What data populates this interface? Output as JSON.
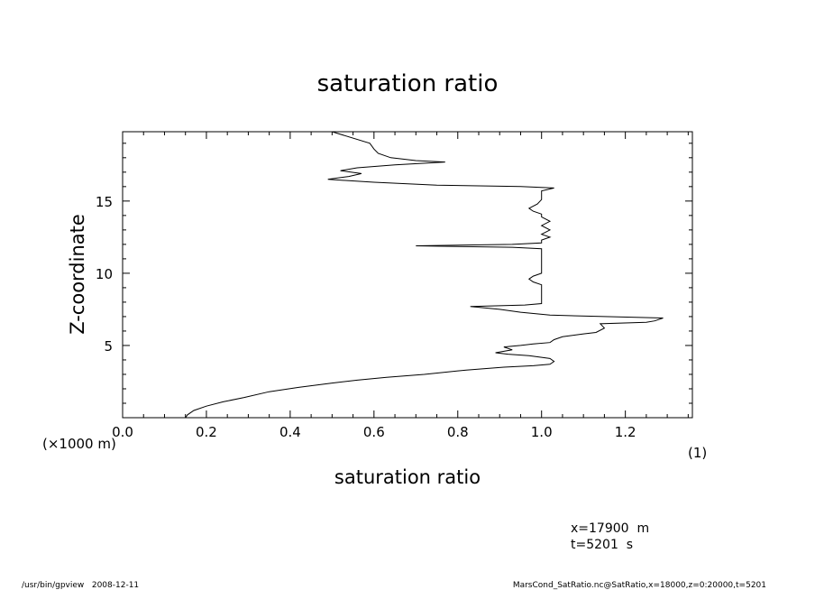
{
  "chart_data": {
    "type": "line",
    "title": "saturation ratio",
    "xlabel": "saturation ratio",
    "ylabel": "Z-coordinate",
    "x_unit": "(1)",
    "y_unit": "(×1000 m)",
    "xlim": [
      0.0,
      1.36
    ],
    "ylim": [
      0,
      19.8
    ],
    "x_ticks": [
      "0.0",
      "0.2",
      "0.4",
      "0.6",
      "0.8",
      "1.0",
      "1.2"
    ],
    "y_ticks": [
      "5",
      "10",
      "15"
    ],
    "grid": false,
    "series": [
      {
        "points": [
          [
            0.15,
            0.0
          ],
          [
            0.155,
            0.2
          ],
          [
            0.17,
            0.5
          ],
          [
            0.2,
            0.8
          ],
          [
            0.24,
            1.1
          ],
          [
            0.29,
            1.4
          ],
          [
            0.35,
            1.8
          ],
          [
            0.42,
            2.1
          ],
          [
            0.5,
            2.4
          ],
          [
            0.56,
            2.6
          ],
          [
            0.63,
            2.8
          ],
          [
            0.72,
            3.0
          ],
          [
            0.82,
            3.3
          ],
          [
            0.91,
            3.5
          ],
          [
            0.98,
            3.6
          ],
          [
            1.02,
            3.7
          ],
          [
            1.03,
            3.9
          ],
          [
            1.02,
            4.1
          ],
          [
            0.97,
            4.3
          ],
          [
            0.92,
            4.4
          ],
          [
            0.89,
            4.5
          ],
          [
            0.93,
            4.7
          ],
          [
            0.91,
            4.9
          ],
          [
            0.95,
            5.0
          ],
          [
            0.98,
            5.1
          ],
          [
            1.02,
            5.2
          ],
          [
            1.03,
            5.4
          ],
          [
            1.05,
            5.6
          ],
          [
            1.1,
            5.8
          ],
          [
            1.13,
            5.9
          ],
          [
            1.15,
            6.2
          ],
          [
            1.14,
            6.5
          ],
          [
            1.25,
            6.6
          ],
          [
            1.27,
            6.7
          ],
          [
            1.29,
            6.9
          ],
          [
            1.15,
            7.0
          ],
          [
            1.02,
            7.1
          ],
          [
            0.95,
            7.3
          ],
          [
            0.9,
            7.5
          ],
          [
            0.83,
            7.7
          ],
          [
            0.96,
            7.8
          ],
          [
            1.0,
            7.9
          ],
          [
            1.0,
            8.5
          ],
          [
            1.0,
            9.2
          ],
          [
            0.98,
            9.4
          ],
          [
            0.97,
            9.6
          ],
          [
            0.98,
            9.8
          ],
          [
            1.0,
            10.0
          ],
          [
            1.0,
            11.0
          ],
          [
            1.0,
            11.7
          ],
          [
            0.93,
            11.8
          ],
          [
            0.7,
            11.9
          ],
          [
            0.93,
            12.0
          ],
          [
            1.0,
            12.1
          ],
          [
            1.0,
            12.3
          ],
          [
            1.02,
            12.5
          ],
          [
            1.0,
            12.7
          ],
          [
            1.02,
            13.0
          ],
          [
            1.0,
            13.3
          ],
          [
            1.02,
            13.6
          ],
          [
            1.0,
            13.9
          ],
          [
            1.0,
            14.1
          ],
          [
            0.98,
            14.3
          ],
          [
            0.97,
            14.5
          ],
          [
            0.99,
            14.8
          ],
          [
            1.0,
            15.1
          ],
          [
            1.0,
            15.4
          ],
          [
            1.0,
            15.7
          ],
          [
            1.03,
            15.9
          ],
          [
            0.95,
            16.0
          ],
          [
            0.75,
            16.1
          ],
          [
            0.6,
            16.3
          ],
          [
            0.49,
            16.5
          ],
          [
            0.54,
            16.7
          ],
          [
            0.57,
            16.9
          ],
          [
            0.52,
            17.1
          ],
          [
            0.56,
            17.3
          ],
          [
            0.65,
            17.5
          ],
          [
            0.77,
            17.7
          ],
          [
            0.7,
            17.8
          ],
          [
            0.64,
            18.0
          ],
          [
            0.61,
            18.3
          ],
          [
            0.6,
            18.6
          ],
          [
            0.59,
            19.0
          ],
          [
            0.5,
            19.8
          ]
        ]
      }
    ]
  },
  "annotations": {
    "position_line1": "x=17900  m",
    "position_line2": "t=5201  s",
    "footer_left": "/usr/bin/gpview   2008-12-11",
    "footer_right": "MarsCond_SatRatio.nc@SatRatio,x=18000,z=0:20000,t=5201"
  }
}
